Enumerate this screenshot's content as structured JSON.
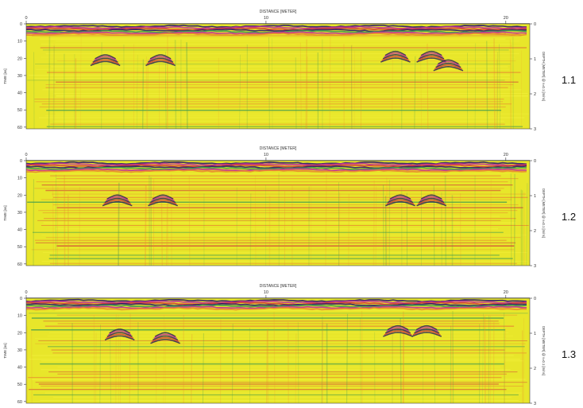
{
  "colors": {
    "background": "#e8e62a",
    "band_light": "#f4f23c",
    "band_orange": "#e98a30",
    "band_red": "#d23a3a",
    "band_green": "#3f9a50",
    "surface_dark": "#2a1a6e",
    "surface_magenta": "#c0309a",
    "hyperbola": "#2a2358"
  },
  "chart_data": [
    {
      "id": "1.1",
      "type": "heatmap",
      "label": "1.1",
      "xlabel": "DISTANCE [METER]",
      "ylabel": "TIME [ns]",
      "y2label": "DEPTH [METER] @ v=0.1 [m/ns]",
      "xlim": [
        0,
        21
      ],
      "ylim": [
        0,
        61
      ],
      "y2lim": [
        0,
        3
      ],
      "xticks": [
        "0",
        "10",
        "20"
      ],
      "yticks": [
        "0",
        "10",
        "20",
        "30",
        "40",
        "50",
        "60"
      ],
      "y2ticks": [
        "0",
        "1",
        "2",
        "3"
      ],
      "hyperbolas": [
        {
          "x": 3.3,
          "t": 18
        },
        {
          "x": 5.6,
          "t": 18
        },
        {
          "x": 15.4,
          "t": 16
        },
        {
          "x": 16.9,
          "t": 16
        },
        {
          "x": 17.6,
          "t": 21
        }
      ]
    },
    {
      "id": "1.2",
      "type": "heatmap",
      "label": "1.2",
      "xlabel": "DISTANCE [METER]",
      "ylabel": "TIME [ns]",
      "y2label": "DEPTH [METER] @ v=0.1 [m/ns]",
      "xlim": [
        0,
        21
      ],
      "ylim": [
        0,
        61
      ],
      "y2lim": [
        0,
        3
      ],
      "xticks": [
        "0",
        "10",
        "20"
      ],
      "yticks": [
        "0",
        "10",
        "20",
        "30",
        "40",
        "50",
        "60"
      ],
      "y2ticks": [
        "0",
        "1",
        "2",
        "3"
      ],
      "hyperbolas": [
        {
          "x": 3.8,
          "t": 20
        },
        {
          "x": 5.7,
          "t": 20
        },
        {
          "x": 15.6,
          "t": 20
        },
        {
          "x": 16.9,
          "t": 20
        }
      ]
    },
    {
      "id": "1.3",
      "type": "heatmap",
      "label": "1.3",
      "xlabel": "DISTANCE [METER]",
      "ylabel": "TIME [ns]",
      "y2label": "DEPTH [METER] @ v=0.1 [m/ns]",
      "xlim": [
        0,
        21
      ],
      "ylim": [
        0,
        61
      ],
      "y2lim": [
        0,
        3
      ],
      "xticks": [
        "0",
        "10",
        "20"
      ],
      "yticks": [
        "0",
        "10",
        "20",
        "30",
        "40",
        "50",
        "60"
      ],
      "y2ticks": [
        "0",
        "1",
        "2",
        "3"
      ],
      "hyperbolas": [
        {
          "x": 3.9,
          "t": 18
        },
        {
          "x": 5.8,
          "t": 20
        },
        {
          "x": 15.5,
          "t": 16
        },
        {
          "x": 16.7,
          "t": 16
        }
      ]
    }
  ]
}
